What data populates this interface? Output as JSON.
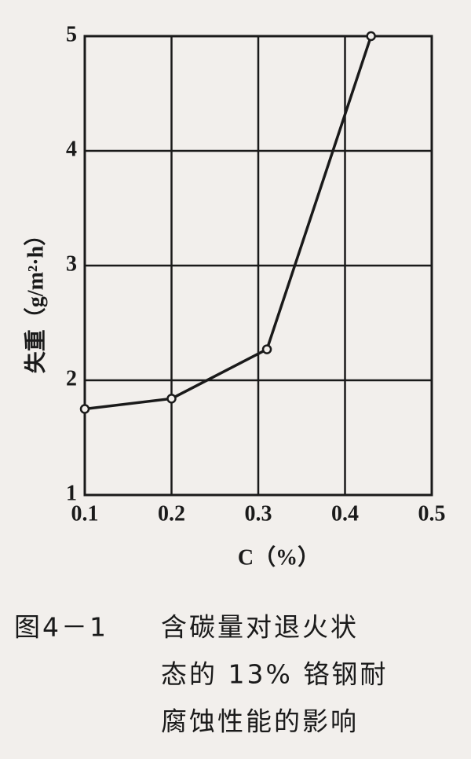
{
  "chart_data": {
    "type": "line",
    "x": [
      0.1,
      0.2,
      0.31,
      0.43
    ],
    "values": [
      1.75,
      1.84,
      2.27,
      5.0
    ],
    "color": "#1a1a1a",
    "xlim": [
      0.1,
      0.5
    ],
    "xticks": [
      0.1,
      0.2,
      0.3,
      0.4,
      0.5
    ],
    "ylim": [
      1,
      5
    ],
    "yticks": [
      1,
      2,
      3,
      4,
      5
    ],
    "grid": true,
    "y_label": "失重（g/m²·h）",
    "x_label": "C（%）",
    "caption_number": "图4－1",
    "caption_lines": [
      "含碳量对退火状",
      "态的 13% 铬钢耐",
      "腐蚀性能的影响"
    ]
  }
}
